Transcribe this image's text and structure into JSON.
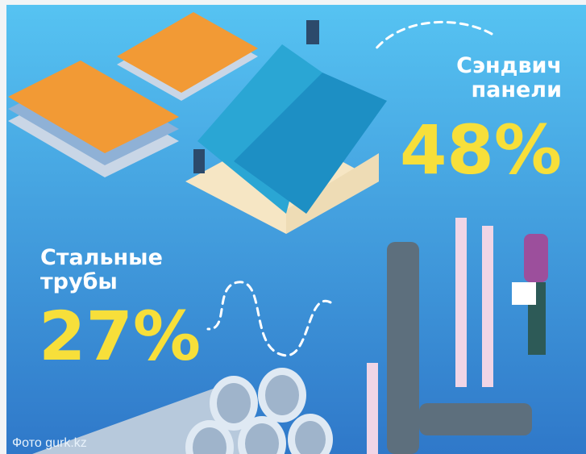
{
  "callouts": [
    {
      "label_lines": [
        "Сэндвич",
        "панели"
      ],
      "value": "48%"
    },
    {
      "label_lines": [
        "Стальные",
        "трубы"
      ],
      "value": "27%"
    }
  ],
  "credit": "Фото gurk.kz"
}
